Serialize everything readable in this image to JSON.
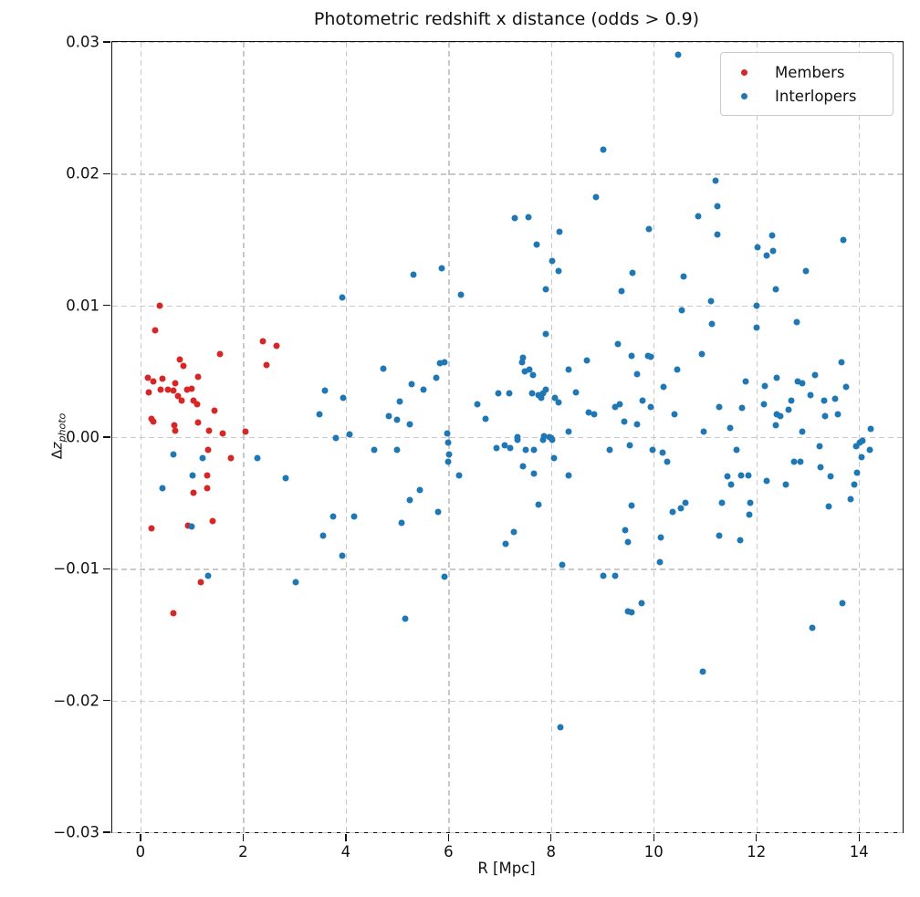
{
  "title": "Photometric redshift x distance (odds > 0.9)",
  "axes": {
    "xlabel": "R [Mpc]",
    "ylabel_prefix": "Δ",
    "ylabel_var": "z",
    "ylabel_sub": "photo",
    "xlim": [
      -0.55,
      14.85
    ],
    "ylim": [
      -0.03,
      0.03
    ],
    "xticks": [
      0,
      2,
      4,
      6,
      8,
      10,
      12,
      14
    ],
    "xtick_labels": [
      "0",
      "2",
      "4",
      "6",
      "8",
      "10",
      "12",
      "14"
    ],
    "yticks": [
      0.03,
      0.02,
      0.01,
      0.0,
      -0.01,
      -0.02,
      -0.03
    ],
    "ytick_labels": [
      "0.03",
      "0.02",
      "0.01",
      "0.00",
      "−0.01",
      "−0.02",
      "−0.03"
    ],
    "grid": true
  },
  "legend": {
    "position": "upper right",
    "items": [
      {
        "label": "Members",
        "color": "#d62728"
      },
      {
        "label": "Interlopers",
        "color": "#1f77b4"
      }
    ]
  },
  "chart_data": {
    "type": "scatter",
    "title": "Photometric redshift x distance (odds > 0.9)",
    "xlabel": "R [Mpc]",
    "ylabel": "Δz_photo",
    "xlim": [
      -0.55,
      14.85
    ],
    "ylim": [
      -0.03,
      0.03
    ],
    "series": [
      {
        "name": "Members",
        "color": "#d62728",
        "points": [
          [
            0.37,
            0.01
          ],
          [
            0.28,
            0.0081
          ],
          [
            1.55,
            0.0063
          ],
          [
            2.39,
            0.0073
          ],
          [
            2.65,
            0.0069
          ],
          [
            2.45,
            0.0055
          ],
          [
            0.76,
            0.0059
          ],
          [
            0.83,
            0.0054
          ],
          [
            0.14,
            0.0045
          ],
          [
            0.25,
            0.0042
          ],
          [
            0.42,
            0.0044
          ],
          [
            0.67,
            0.0041
          ],
          [
            1.12,
            0.0046
          ],
          [
            0.16,
            0.0034
          ],
          [
            0.39,
            0.0036
          ],
          [
            0.54,
            0.0036
          ],
          [
            0.64,
            0.0035
          ],
          [
            0.9,
            0.0036
          ],
          [
            0.99,
            0.0037
          ],
          [
            0.73,
            0.0031
          ],
          [
            0.8,
            0.0028
          ],
          [
            1.04,
            0.0028
          ],
          [
            1.1,
            0.0025
          ],
          [
            1.44,
            0.002
          ],
          [
            0.21,
            0.0014
          ],
          [
            0.25,
            0.0012
          ],
          [
            0.66,
            0.0009
          ],
          [
            0.68,
            0.0005
          ],
          [
            1.13,
            0.0011
          ],
          [
            1.33,
            0.0005
          ],
          [
            1.6,
            0.0003
          ],
          [
            2.05,
            0.0004
          ],
          [
            1.32,
            -0.001
          ],
          [
            1.77,
            -0.0016
          ],
          [
            1.3,
            -0.0029
          ],
          [
            1.03,
            -0.0042
          ],
          [
            1.3,
            -0.0039
          ],
          [
            1.41,
            -0.0064
          ],
          [
            0.21,
            -0.0069
          ],
          [
            0.93,
            -0.0067
          ],
          [
            1.17,
            -0.011
          ],
          [
            0.65,
            -0.0134
          ]
        ]
      },
      {
        "name": "Interlopers",
        "color": "#1f77b4",
        "points": [
          [
            10.48,
            0.029
          ],
          [
            9.02,
            0.0218
          ],
          [
            11.2,
            0.0195
          ],
          [
            8.88,
            0.0182
          ],
          [
            11.24,
            0.0175
          ],
          [
            10.87,
            0.0168
          ],
          [
            7.3,
            0.0166
          ],
          [
            7.56,
            0.0167
          ],
          [
            9.91,
            0.0158
          ],
          [
            8.16,
            0.0156
          ],
          [
            11.24,
            0.0154
          ],
          [
            12.3,
            0.0153
          ],
          [
            13.7,
            0.015
          ],
          [
            7.72,
            0.0146
          ],
          [
            12.02,
            0.0144
          ],
          [
            12.33,
            0.0141
          ],
          [
            12.2,
            0.0138
          ],
          [
            8.02,
            0.0134
          ],
          [
            5.87,
            0.0128
          ],
          [
            8.14,
            0.0126
          ],
          [
            12.97,
            0.0126
          ],
          [
            9.59,
            0.0125
          ],
          [
            5.31,
            0.0123
          ],
          [
            10.58,
            0.0122
          ],
          [
            12.38,
            0.0112
          ],
          [
            7.9,
            0.0112
          ],
          [
            9.38,
            0.0111
          ],
          [
            6.25,
            0.0108
          ],
          [
            3.93,
            0.0106
          ],
          [
            11.12,
            0.0103
          ],
          [
            12.01,
            0.01
          ],
          [
            10.55,
            0.0096
          ],
          [
            11.13,
            0.0086
          ],
          [
            12.79,
            0.0087
          ],
          [
            12.01,
            0.0083
          ],
          [
            7.9,
            0.0078
          ],
          [
            9.31,
            0.0071
          ],
          [
            10.93,
            0.0063
          ],
          [
            9.56,
            0.0062
          ],
          [
            9.88,
            0.0062
          ],
          [
            9.95,
            0.0061
          ],
          [
            7.46,
            0.006
          ],
          [
            8.7,
            0.0058
          ],
          [
            7.44,
            0.0057
          ],
          [
            13.65,
            0.0057
          ],
          [
            5.84,
            0.0056
          ],
          [
            5.93,
            0.0057
          ],
          [
            4.74,
            0.0052
          ],
          [
            7.48,
            0.005
          ],
          [
            7.57,
            0.0051
          ],
          [
            8.35,
            0.0051
          ],
          [
            10.45,
            0.0051
          ],
          [
            9.68,
            0.0048
          ],
          [
            7.64,
            0.0047
          ],
          [
            13.14,
            0.0047
          ],
          [
            12.4,
            0.0045
          ],
          [
            5.77,
            0.0045
          ],
          [
            12.8,
            0.0042
          ],
          [
            12.9,
            0.0041
          ],
          [
            11.8,
            0.0042
          ],
          [
            5.29,
            0.004
          ],
          [
            12.17,
            0.0039
          ],
          [
            13.75,
            0.0038
          ],
          [
            10.19,
            0.0038
          ],
          [
            7.89,
            0.0036
          ],
          [
            5.51,
            0.0036
          ],
          [
            3.6,
            0.0035
          ],
          [
            8.48,
            0.0034
          ],
          [
            6.98,
            0.0033
          ],
          [
            7.18,
            0.0033
          ],
          [
            7.63,
            0.0033
          ],
          [
            7.85,
            0.0033
          ],
          [
            7.76,
            0.0032
          ],
          [
            13.06,
            0.0032
          ],
          [
            7.81,
            0.003
          ],
          [
            3.95,
            0.003
          ],
          [
            8.08,
            0.003
          ],
          [
            13.32,
            0.0028
          ],
          [
            13.54,
            0.0029
          ],
          [
            9.79,
            0.0028
          ],
          [
            12.68,
            0.0028
          ],
          [
            5.06,
            0.0027
          ],
          [
            8.15,
            0.0026
          ],
          [
            6.57,
            0.0025
          ],
          [
            12.15,
            0.0025
          ],
          [
            9.34,
            0.0025
          ],
          [
            9.25,
            0.0023
          ],
          [
            11.28,
            0.0023
          ],
          [
            9.95,
            0.0023
          ],
          [
            11.72,
            0.0022
          ],
          [
            12.63,
            0.0021
          ],
          [
            8.74,
            0.0019
          ],
          [
            8.84,
            0.0017
          ],
          [
            3.49,
            0.0017
          ],
          [
            12.4,
            0.0017
          ],
          [
            12.47,
            0.0016
          ],
          [
            10.41,
            0.0017
          ],
          [
            13.33,
            0.0016
          ],
          [
            13.59,
            0.0017
          ],
          [
            6.73,
            0.0014
          ],
          [
            4.84,
            0.0016
          ],
          [
            5.0,
            0.0013
          ],
          [
            9.43,
            0.0012
          ],
          [
            9.68,
            0.001
          ],
          [
            5.25,
            0.001
          ],
          [
            13.09,
            -0.0145
          ],
          [
            12.37,
            0.0009
          ],
          [
            11.49,
            0.0007
          ],
          [
            14.23,
            0.0006
          ],
          [
            12.89,
            0.0004
          ],
          [
            10.98,
            0.0004
          ],
          [
            8.35,
            0.0004
          ],
          [
            5.97,
            0.0003
          ],
          [
            4.07,
            0.0002
          ],
          [
            7.87,
            0.0001
          ],
          [
            7.35,
            0.0
          ],
          [
            7.97,
            0.0
          ],
          [
            3.81,
            -0.0001
          ],
          [
            8.0,
            -0.0001
          ],
          [
            7.84,
            -0.0002
          ],
          [
            8.03,
            -0.0002
          ],
          [
            7.34,
            -0.0002
          ],
          [
            14.07,
            -0.0003
          ],
          [
            6.0,
            -0.0004
          ],
          [
            14.02,
            -0.0004
          ],
          [
            9.54,
            -0.0006
          ],
          [
            7.09,
            -0.0006
          ],
          [
            13.23,
            -0.0007
          ],
          [
            13.95,
            -0.0007
          ],
          [
            6.94,
            -0.0008
          ],
          [
            7.21,
            -0.0008
          ],
          [
            4.55,
            -0.001
          ],
          [
            4.99,
            -0.001
          ],
          [
            7.5,
            -0.001
          ],
          [
            7.66,
            -0.001
          ],
          [
            9.15,
            -0.001
          ],
          [
            9.98,
            -0.001
          ],
          [
            11.62,
            -0.001
          ],
          [
            14.21,
            -0.001
          ],
          [
            0.64,
            -0.0013
          ],
          [
            6.01,
            -0.0013
          ],
          [
            10.18,
            -0.0012
          ],
          [
            14.05,
            -0.0015
          ],
          [
            1.21,
            -0.0016
          ],
          [
            2.28,
            -0.0016
          ],
          [
            8.06,
            -0.0016
          ],
          [
            6.0,
            -0.0019
          ],
          [
            10.27,
            -0.0019
          ],
          [
            12.74,
            -0.0019
          ],
          [
            12.86,
            -0.0019
          ],
          [
            7.46,
            -0.0022
          ],
          [
            13.25,
            -0.0023
          ],
          [
            13.96,
            -0.0027
          ],
          [
            7.66,
            -0.0028
          ],
          [
            1.01,
            -0.0029
          ],
          [
            6.2,
            -0.0029
          ],
          [
            8.35,
            -0.0029
          ],
          [
            11.44,
            -0.003
          ],
          [
            11.7,
            -0.0029
          ],
          [
            11.84,
            -0.0029
          ],
          [
            2.82,
            -0.0031
          ],
          [
            13.45,
            -0.003
          ],
          [
            12.2,
            -0.0033
          ],
          [
            11.51,
            -0.0036
          ],
          [
            12.57,
            -0.0036
          ],
          [
            13.91,
            -0.0036
          ],
          [
            0.43,
            -0.0039
          ],
          [
            5.44,
            -0.004
          ],
          [
            13.84,
            -0.0047
          ],
          [
            5.24,
            -0.0048
          ],
          [
            7.76,
            -0.0051
          ],
          [
            9.56,
            -0.0052
          ],
          [
            10.62,
            -0.005
          ],
          [
            10.53,
            -0.0054
          ],
          [
            11.33,
            -0.005
          ],
          [
            11.88,
            -0.005
          ],
          [
            13.41,
            -0.0053
          ],
          [
            10.37,
            -0.0057
          ],
          [
            5.8,
            -0.0057
          ],
          [
            11.87,
            -0.0059
          ],
          [
            3.75,
            -0.006
          ],
          [
            4.17,
            -0.006
          ],
          [
            5.08,
            -0.0065
          ],
          [
            1.0,
            -0.0068
          ],
          [
            9.45,
            -0.0071
          ],
          [
            7.27,
            -0.0072
          ],
          [
            3.55,
            -0.0075
          ],
          [
            10.14,
            -0.0076
          ],
          [
            11.28,
            -0.0075
          ],
          [
            11.69,
            -0.0078
          ],
          [
            9.49,
            -0.008
          ],
          [
            7.12,
            -0.0081
          ],
          [
            3.94,
            -0.009
          ],
          [
            10.12,
            -0.0095
          ],
          [
            8.21,
            -0.0097
          ],
          [
            1.31,
            -0.0105
          ],
          [
            9.01,
            -0.0105
          ],
          [
            9.25,
            -0.0105
          ],
          [
            5.92,
            -0.0106
          ],
          [
            3.02,
            -0.011
          ],
          [
            9.77,
            -0.0126
          ],
          [
            13.68,
            -0.0126
          ],
          [
            9.5,
            -0.0132
          ],
          [
            9.56,
            -0.0133
          ],
          [
            5.15,
            -0.0138
          ],
          [
            10.96,
            -0.0178
          ],
          [
            8.19,
            -0.022
          ]
        ]
      }
    ]
  }
}
